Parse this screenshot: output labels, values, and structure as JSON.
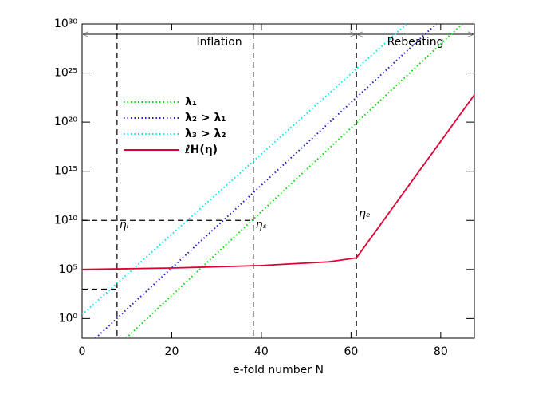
{
  "chart_data": {
    "type": "line",
    "xlabel": "e-fold number N",
    "xlim": [
      0,
      87.5
    ],
    "xticks": [
      0,
      20,
      40,
      60,
      80
    ],
    "ylim": [
      0.01,
      1e+30
    ],
    "log_y": true,
    "yticks": [
      {
        "value": 1,
        "label": "10⁰"
      },
      {
        "value": 100000.0,
        "label": "10⁵"
      },
      {
        "value": 10000000000.0,
        "label": "10¹⁰"
      },
      {
        "value": 1000000000000000.0,
        "label": "10¹⁵"
      },
      {
        "value": 1e+20,
        "label": "10²⁰"
      },
      {
        "value": 1e+25,
        "label": "10²⁵"
      },
      {
        "value": 1e+30,
        "label": "10³⁰"
      }
    ],
    "series": [
      {
        "name": "λ₁",
        "color": "#00dd00",
        "style": "dotted",
        "x": [
          9.8,
          84.8
        ],
        "values": [
          0.01,
          1e+30
        ]
      },
      {
        "name": "λ₂ > λ₁",
        "color": "#2020cc",
        "style": "dotted",
        "x": [
          3,
          79
        ],
        "values": [
          0.01,
          1e+30
        ]
      },
      {
        "name": "λ₃ > λ₂",
        "color": "#00e5ee",
        "style": "dotted",
        "x": [
          0,
          72.4
        ],
        "values": [
          2.5,
          1e+30
        ]
      },
      {
        "name": "ℓH(η)",
        "color": "#dd0033",
        "style": "solid",
        "x": [
          0,
          20,
          40,
          55,
          61.2,
          87.5
        ],
        "values": [
          100000,
          140000,
          250000,
          600000,
          1500000,
          6e+22
        ]
      }
    ],
    "markers": [
      {
        "label": "ηᵢ",
        "x": 7.8
      },
      {
        "label": "ηₛ",
        "x": 38.2
      },
      {
        "label": "ηₑ",
        "x": 61.2
      }
    ],
    "hlines": [
      {
        "y": 10000000000.0,
        "x": [
          0,
          38.2
        ]
      },
      {
        "y": 1000,
        "x": [
          0,
          7.8
        ]
      }
    ],
    "phases": [
      {
        "label": "Inflation",
        "x": [
          0,
          61.2
        ]
      },
      {
        "label": "Rebeating",
        "x": [
          61.2,
          87.5
        ]
      }
    ]
  }
}
